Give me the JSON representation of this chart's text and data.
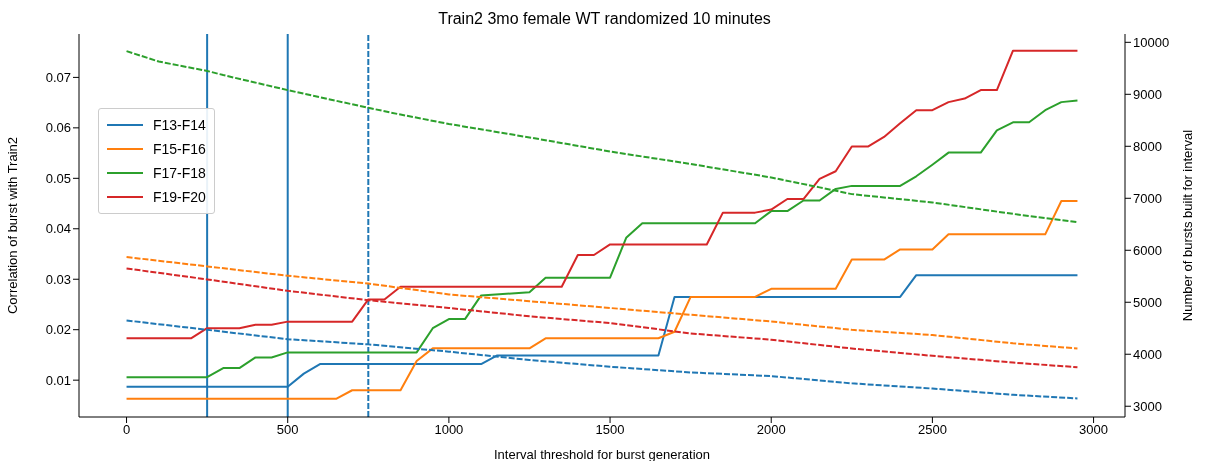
{
  "chart_data": {
    "type": "line",
    "title": "Train2 3mo female WT randomized 10 minutes",
    "xlabel": "Interval threshold for burst generation",
    "ylabel": "Correlation of burst with Train2",
    "y2label": "Number of bursts built for interval",
    "xlim": [
      -147.5,
      3097.5
    ],
    "xticks": [
      0,
      500,
      1000,
      1500,
      2000,
      2500,
      3000
    ],
    "ylim": [
      0.0027,
      0.0786
    ],
    "yticks": [
      0.01,
      0.02,
      0.03,
      0.04,
      0.05,
      0.06,
      0.07
    ],
    "y2lim": [
      2793,
      10160
    ],
    "y2ticks": [
      3000,
      4000,
      5000,
      6000,
      7000,
      8000,
      9000,
      10000
    ],
    "legend": "left",
    "grid": false,
    "ref_lines": [
      {
        "axis": "x",
        "value": 250,
        "color": "#1f77b4",
        "line_style": "solid"
      },
      {
        "axis": "x",
        "value": 500,
        "color": "#1f77b4",
        "line_style": "solid"
      },
      {
        "axis": "x",
        "value": 750,
        "color": "#1f77b4",
        "line_style": "dashed"
      }
    ],
    "series": [
      {
        "name": "F13-F14",
        "color": "#1f77b4",
        "line_style": "solid",
        "x": [
          0,
          500,
          550,
          600,
          1100,
          1150,
          1650,
          1700,
          2400,
          2450,
          2950
        ],
        "values": [
          0.0087,
          0.0087,
          0.0113,
          0.0132,
          0.0132,
          0.0149,
          0.0149,
          0.0265,
          0.0265,
          0.0308,
          0.0308
        ]
      },
      {
        "name": "F15-F16",
        "color": "#ff7f0e",
        "line_style": "solid",
        "x": [
          0,
          650,
          700,
          850,
          900,
          950,
          1250,
          1300,
          1650,
          1700,
          1750,
          1950,
          2000,
          2200,
          2250,
          2350,
          2400,
          2500,
          2550,
          2850,
          2900,
          2950
        ],
        "values": [
          0.0063,
          0.0063,
          0.008,
          0.008,
          0.0138,
          0.0163,
          0.0163,
          0.0183,
          0.0183,
          0.0196,
          0.0265,
          0.0265,
          0.0281,
          0.0281,
          0.0339,
          0.0339,
          0.0359,
          0.0359,
          0.0389,
          0.0389,
          0.0455,
          0.0455
        ]
      },
      {
        "name": "F17-F18",
        "color": "#2ca02c",
        "line_style": "solid",
        "x": [
          0,
          250,
          300,
          350,
          400,
          450,
          500,
          900,
          950,
          1000,
          1050,
          1100,
          1250,
          1300,
          1500,
          1550,
          1600,
          1950,
          2000,
          2050,
          2100,
          2150,
          2200,
          2250,
          2400,
          2450,
          2500,
          2550,
          2650,
          2700,
          2750,
          2800,
          2850,
          2900,
          2950
        ],
        "values": [
          0.0106,
          0.0106,
          0.0124,
          0.0124,
          0.0145,
          0.0145,
          0.0155,
          0.0155,
          0.0203,
          0.0221,
          0.0221,
          0.0268,
          0.0274,
          0.0303,
          0.0303,
          0.0382,
          0.0411,
          0.0411,
          0.0435,
          0.0435,
          0.0456,
          0.0456,
          0.0479,
          0.0485,
          0.0485,
          0.0504,
          0.0527,
          0.0551,
          0.0551,
          0.0595,
          0.0611,
          0.0611,
          0.0635,
          0.0651,
          0.0654
        ]
      },
      {
        "name": "F19-F20",
        "color": "#d62728",
        "line_style": "solid",
        "x": [
          0,
          200,
          250,
          350,
          400,
          450,
          500,
          700,
          750,
          800,
          850,
          1350,
          1400,
          1450,
          1500,
          1800,
          1850,
          1950,
          2000,
          2050,
          2100,
          2150,
          2200,
          2250,
          2300,
          2350,
          2400,
          2450,
          2500,
          2550,
          2600,
          2650,
          2700,
          2750,
          2950
        ],
        "values": [
          0.0183,
          0.0183,
          0.0203,
          0.0203,
          0.021,
          0.021,
          0.0216,
          0.0216,
          0.026,
          0.026,
          0.0285,
          0.0285,
          0.0348,
          0.0348,
          0.0369,
          0.0369,
          0.0432,
          0.0432,
          0.0438,
          0.0459,
          0.0459,
          0.0499,
          0.0514,
          0.0563,
          0.0563,
          0.0582,
          0.0609,
          0.0635,
          0.0635,
          0.0651,
          0.0658,
          0.0675,
          0.0675,
          0.0753,
          0.0753
        ]
      },
      {
        "color": "#2ca02c",
        "line_style": "dashed",
        "axis": "y2",
        "x": [
          0,
          100,
          250,
          300,
          500,
          750,
          850,
          1000,
          1250,
          1500,
          1750,
          2000,
          2150,
          2250,
          2500,
          2750,
          2950
        ],
        "values": [
          9830,
          9630,
          9450,
          9370,
          9080,
          8740,
          8610,
          8430,
          8170,
          7900,
          7660,
          7400,
          7210,
          7080,
          6920,
          6700,
          6540
        ]
      },
      {
        "color": "#ff7f0e",
        "line_style": "dashed",
        "axis": "y2",
        "x": [
          0,
          250,
          500,
          750,
          1000,
          1250,
          1500,
          1750,
          2000,
          2250,
          2500,
          2750,
          2950
        ],
        "values": [
          5870,
          5690,
          5510,
          5360,
          5150,
          5020,
          4890,
          4760,
          4630,
          4470,
          4370,
          4210,
          4110
        ]
      },
      {
        "color": "#d62728",
        "line_style": "dashed",
        "axis": "y2",
        "x": [
          0,
          250,
          500,
          750,
          1000,
          1250,
          1500,
          1750,
          2000,
          2250,
          2500,
          2750,
          2950
        ],
        "values": [
          5650,
          5440,
          5220,
          5040,
          4890,
          4730,
          4600,
          4400,
          4280,
          4110,
          3970,
          3840,
          3750
        ]
      },
      {
        "color": "#1f77b4",
        "line_style": "dashed",
        "axis": "y2",
        "x": [
          0,
          250,
          500,
          750,
          1000,
          1250,
          1500,
          1750,
          2000,
          2250,
          2500,
          2750,
          2950
        ],
        "values": [
          4650,
          4470,
          4290,
          4190,
          4050,
          3890,
          3760,
          3650,
          3580,
          3440,
          3340,
          3220,
          3150
        ]
      }
    ]
  }
}
